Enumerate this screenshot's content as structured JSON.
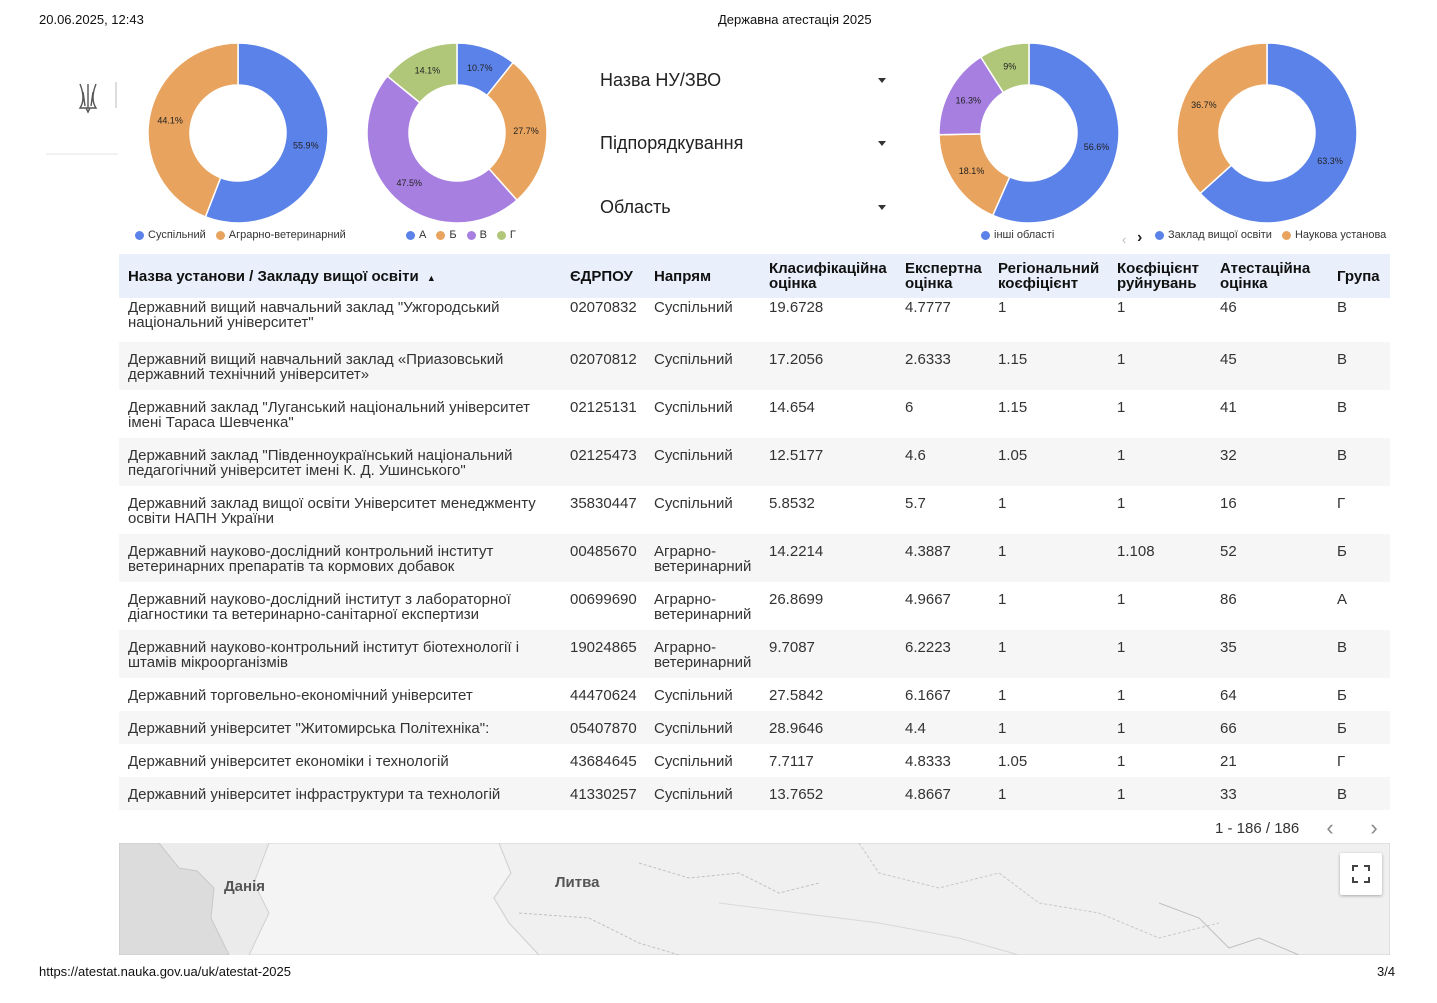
{
  "header": {
    "datetime": "20.06.2025, 12:43",
    "title": "Державна атестація 2025"
  },
  "footer": {
    "url": "https://atestat.nauka.gov.ua/uk/atestat-2025",
    "page": "3/4"
  },
  "logo": {
    "icon": "trident-icon"
  },
  "colors": {
    "blue": "#5b82e9",
    "orange": "#e8a35e",
    "purple": "#a77fe0",
    "green": "#b0c77a",
    "header_bg": "#e9effb"
  },
  "donuts": [
    {
      "slices": [
        {
          "name": "Суспільний",
          "value": 55.9,
          "label": "55.9%",
          "color": "#5b82e9"
        },
        {
          "name": "Аграрно-ветеринарний",
          "value": 44.1,
          "label": "44.1%",
          "color": "#e8a35e"
        }
      ],
      "legend": [
        "Суспільний",
        "Аграрно-ветеринарний"
      ]
    },
    {
      "slices": [
        {
          "name": "А",
          "value": 10.7,
          "label": "10.7%",
          "color": "#5b82e9"
        },
        {
          "name": "Б",
          "value": 27.7,
          "label": "27.7%",
          "color": "#e8a35e"
        },
        {
          "name": "В",
          "value": 47.5,
          "label": "47.5%",
          "color": "#a77fe0"
        },
        {
          "name": "Г",
          "value": 14.1,
          "label": "14.1%",
          "color": "#b0c77a"
        }
      ],
      "legend": [
        "А",
        "Б",
        "В",
        "Г"
      ]
    },
    {
      "slices": [
        {
          "name": "інші області",
          "value": 56.6,
          "label": "56.6%",
          "color": "#5b82e9"
        },
        {
          "name": "",
          "value": 18.1,
          "label": "18.1%",
          "color": "#e8a35e"
        },
        {
          "name": "",
          "value": 16.3,
          "label": "16.3%",
          "color": "#a77fe0"
        },
        {
          "name": "",
          "value": 9,
          "label": "9%",
          "color": "#b0c77a"
        }
      ],
      "legend": [
        "інші області"
      ]
    },
    {
      "slices": [
        {
          "name": "Заклад вищої освіти",
          "value": 63.3,
          "label": "63.3%",
          "color": "#5b82e9"
        },
        {
          "name": "Наукова установа",
          "value": 36.7,
          "label": "36.7%",
          "color": "#e8a35e"
        }
      ],
      "legend": [
        "Заклад вищої освіти",
        "Наукова установа"
      ]
    }
  ],
  "filters": [
    "Назва НУ/ЗВО",
    "Підпорядкування",
    "Область"
  ],
  "table": {
    "columns": [
      "Назва установи / Закладу вищої освіти",
      "ЄДРПОУ",
      "Напрям",
      "Класифікаційна оцінка",
      "Експертна оцінка",
      "Регіональний коєфіцієнт",
      "Коєфіцієнт руйнувань",
      "Атестаційна оцінка",
      "Група"
    ],
    "sort_indicator": "▲",
    "rows": [
      [
        "Державний вищий навчальний заклад \"Ужгородський національний університет\"",
        "02070832",
        "Суспільний",
        "19.6728",
        "4.7777",
        "1",
        "1",
        "46",
        "В"
      ],
      [
        "Державний вищий навчальний заклад «Приазовський державний технічний університет»",
        "02070812",
        "Суспільний",
        "17.2056",
        "2.6333",
        "1.15",
        "1",
        "45",
        "В"
      ],
      [
        "Державний заклад \"Луганський національний університет імені Тараса Шевченка\"",
        "02125131",
        "Суспільний",
        "14.654",
        "6",
        "1.15",
        "1",
        "41",
        "В"
      ],
      [
        "Державний заклад \"Південноукраїнський національний педагогічний університет імені К. Д. Ушинського\"",
        "02125473",
        "Суспільний",
        "12.5177",
        "4.6",
        "1.05",
        "1",
        "32",
        "В"
      ],
      [
        "Державний заклад вищої освіти Університет менеджменту освіти НАПН України",
        "35830447",
        "Суспільний",
        "5.8532",
        "5.7",
        "1",
        "1",
        "16",
        "Г"
      ],
      [
        "Державний науково-дослідний контрольний інститут ветеринарних препаратів та кормових добавок",
        "00485670",
        "Аграрно-ветеринарний",
        "14.2214",
        "4.3887",
        "1",
        "1.108",
        "52",
        "Б"
      ],
      [
        "Державний науково-дослідний інститут з лабораторної діагностики та ветеринарно-санітарної експертизи",
        "00699690",
        "Аграрно-ветеринарний",
        "26.8699",
        "4.9667",
        "1",
        "1",
        "86",
        "А"
      ],
      [
        "Державний науково-контрольний інститут біотехнології і штамів мікроорганізмів",
        "19024865",
        "Аграрно-ветеринарний",
        "9.7087",
        "6.2223",
        "1",
        "1",
        "35",
        "В"
      ],
      [
        "Державний торговельно-економічний університет",
        "44470624",
        "Суспільний",
        "27.5842",
        "6.1667",
        "1",
        "1",
        "64",
        "Б"
      ],
      [
        "Державний університет \"Житомирська Політехніка\":",
        "05407870",
        "Суспільний",
        "28.9646",
        "4.4",
        "1",
        "1",
        "66",
        "Б"
      ],
      [
        "Державний університет економіки і технологій",
        "43684645",
        "Суспільний",
        "7.7117",
        "4.8333",
        "1.05",
        "1",
        "21",
        "Г"
      ],
      [
        "Державний університет інфраструктури та технологій",
        "41330257",
        "Суспільний",
        "13.7652",
        "4.8667",
        "1",
        "1",
        "33",
        "В"
      ]
    ]
  },
  "pagination": {
    "text": "1 - 186 / 186",
    "prev_icon": "chevron-left-icon",
    "next_icon": "chevron-right-icon"
  },
  "map": {
    "labels": [
      "Данія",
      "Литва"
    ],
    "fullscreen_icon": "fullscreen-icon"
  }
}
